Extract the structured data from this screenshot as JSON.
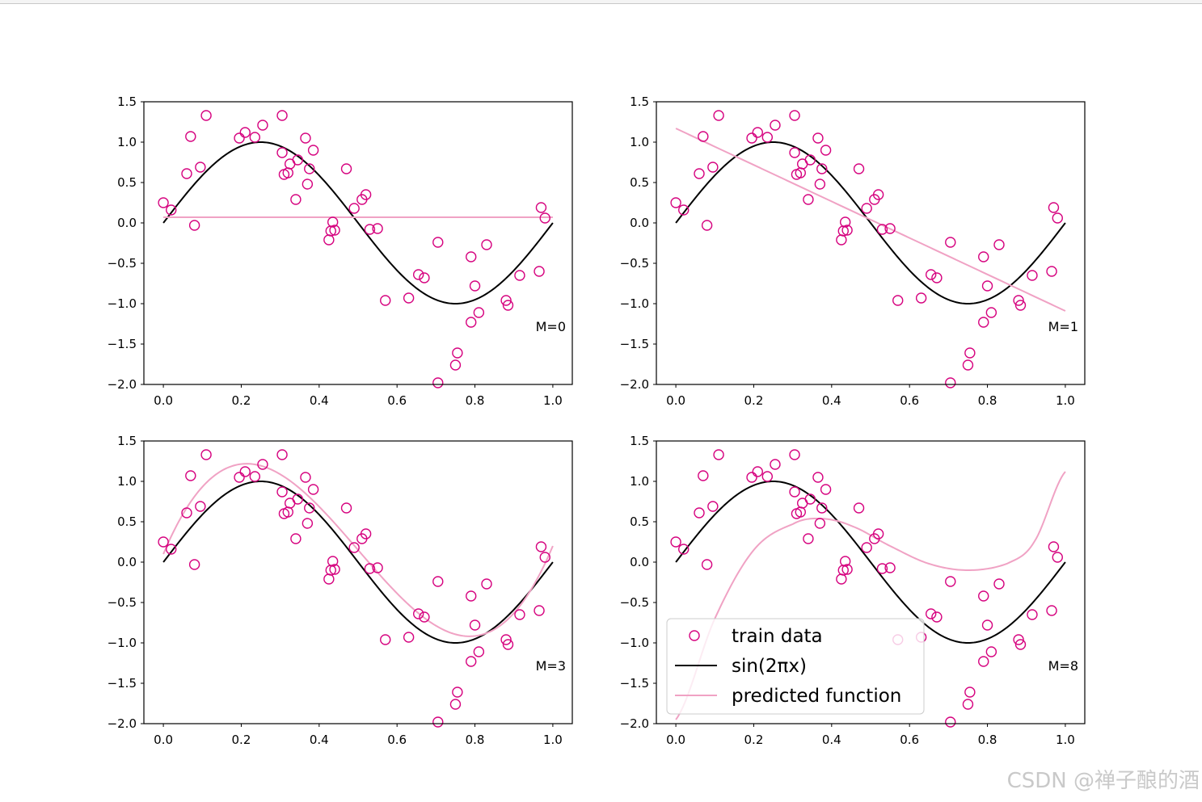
{
  "colors": {
    "train": "#d6037f",
    "truth": "#000000",
    "pred": "#f0a2c4"
  },
  "legend": {
    "train_label": "train data",
    "truth_label": "sin(2πx)",
    "pred_label": "predicted function"
  },
  "watermark": "CSDN @禅子酿的酒",
  "chart_data": [
    {
      "type": "line",
      "panel": "M=0",
      "annotation": "M=0",
      "xlim": [
        -0.05,
        1.05
      ],
      "ylim": [
        -2.0,
        1.5
      ],
      "xticks": [
        0.0,
        0.2,
        0.4,
        0.6,
        0.8,
        1.0
      ],
      "xtick_labels": [
        "0.0",
        "0.2",
        "0.4",
        "0.6",
        "0.8",
        "1.0"
      ],
      "yticks": [
        -2.0,
        -1.5,
        -1.0,
        -0.5,
        0.0,
        0.5,
        1.0,
        1.5
      ],
      "ytick_labels": [
        "−2.0",
        "−1.5",
        "−1.0",
        "−0.5",
        "0.0",
        "0.5",
        "1.0",
        "1.5"
      ],
      "predicted_coefficients": [
        0.07
      ],
      "show_legend": false
    },
    {
      "type": "line",
      "panel": "M=1",
      "annotation": "M=1",
      "xlim": [
        -0.05,
        1.05
      ],
      "ylim": [
        -2.0,
        1.5
      ],
      "xticks": [
        0.0,
        0.2,
        0.4,
        0.6,
        0.8,
        1.0
      ],
      "xtick_labels": [
        "0.0",
        "0.2",
        "0.4",
        "0.6",
        "0.8",
        "1.0"
      ],
      "yticks": [
        -2.0,
        -1.5,
        -1.0,
        -0.5,
        0.0,
        0.5,
        1.0,
        1.5
      ],
      "ytick_labels": [
        "−2.0",
        "−1.5",
        "−1.0",
        "−0.5",
        "0.0",
        "0.5",
        "1.0",
        "1.5"
      ],
      "predicted_coefficients": [
        1.17,
        -2.26
      ],
      "show_legend": false
    },
    {
      "type": "line",
      "panel": "M=3",
      "annotation": "M=3",
      "xlim": [
        -0.05,
        1.05
      ],
      "ylim": [
        -2.0,
        1.5
      ],
      "xticks": [
        0.0,
        0.2,
        0.4,
        0.6,
        0.8,
        1.0
      ],
      "xtick_labels": [
        "0.0",
        "0.2",
        "0.4",
        "0.6",
        "0.8",
        "1.0"
      ],
      "yticks": [
        -2.0,
        -1.5,
        -1.0,
        -0.5,
        0.0,
        0.5,
        1.0,
        1.5
      ],
      "ytick_labels": [
        "−2.0",
        "−1.5",
        "−1.0",
        "−0.5",
        "0.0",
        "0.5",
        "1.0",
        "1.5"
      ],
      "predicted_coefficients": [
        0.1,
        11.5,
        -34.2,
        22.8
      ],
      "show_legend": false
    },
    {
      "type": "line",
      "panel": "M=8",
      "annotation": "M=8",
      "xlim": [
        -0.05,
        1.05
      ],
      "ylim": [
        -2.0,
        1.5
      ],
      "xticks": [
        0.0,
        0.2,
        0.4,
        0.6,
        0.8,
        1.0
      ],
      "xtick_labels": [
        "0.0",
        "0.2",
        "0.4",
        "0.6",
        "0.8",
        "1.0"
      ],
      "yticks": [
        -2.0,
        -1.5,
        -1.0,
        -0.5,
        0.0,
        0.5,
        1.0,
        1.5
      ],
      "ytick_labels": [
        "−2.0",
        "−1.5",
        "−1.0",
        "−0.5",
        "0.0",
        "0.5",
        "1.0",
        "1.5"
      ],
      "predicted_spline": {
        "x": [
          0.0,
          0.1,
          0.2,
          0.3,
          0.37,
          0.45,
          0.55,
          0.65,
          0.75,
          0.85,
          0.92,
          1.0
        ],
        "y": [
          -1.95,
          -0.7,
          0.15,
          0.47,
          0.54,
          0.45,
          0.2,
          -0.02,
          -0.1,
          -0.02,
          0.25,
          1.12
        ]
      },
      "show_legend": true,
      "legend_position": "lower-left"
    }
  ],
  "train_data": {
    "x": [
      0.0,
      0.02,
      0.06,
      0.07,
      0.08,
      0.095,
      0.11,
      0.195,
      0.21,
      0.235,
      0.255,
      0.305,
      0.305,
      0.31,
      0.32,
      0.325,
      0.34,
      0.345,
      0.365,
      0.37,
      0.385,
      0.375,
      0.43,
      0.425,
      0.435,
      0.44,
      0.47,
      0.49,
      0.51,
      0.52,
      0.55,
      0.53,
      0.57,
      0.63,
      0.655,
      0.67,
      0.705,
      0.705,
      0.75,
      0.755,
      0.79,
      0.79,
      0.8,
      0.81,
      0.83,
      0.88,
      0.885,
      0.915,
      0.965,
      0.97,
      0.98
    ],
    "y": [
      0.25,
      0.16,
      0.61,
      1.07,
      -0.03,
      0.69,
      1.33,
      1.05,
      1.12,
      1.06,
      1.21,
      1.33,
      0.87,
      0.6,
      0.62,
      0.73,
      0.29,
      0.78,
      1.05,
      0.48,
      0.9,
      0.67,
      -0.1,
      -0.21,
      0.01,
      -0.09,
      0.67,
      0.18,
      0.29,
      0.35,
      -0.07,
      -0.08,
      -0.96,
      -0.93,
      -0.64,
      -0.68,
      -1.98,
      -0.24,
      -1.76,
      -1.61,
      -1.23,
      -0.42,
      -0.78,
      -1.11,
      -0.27,
      -0.96,
      -1.02,
      -0.65,
      -0.6,
      0.19,
      0.06
    ]
  }
}
